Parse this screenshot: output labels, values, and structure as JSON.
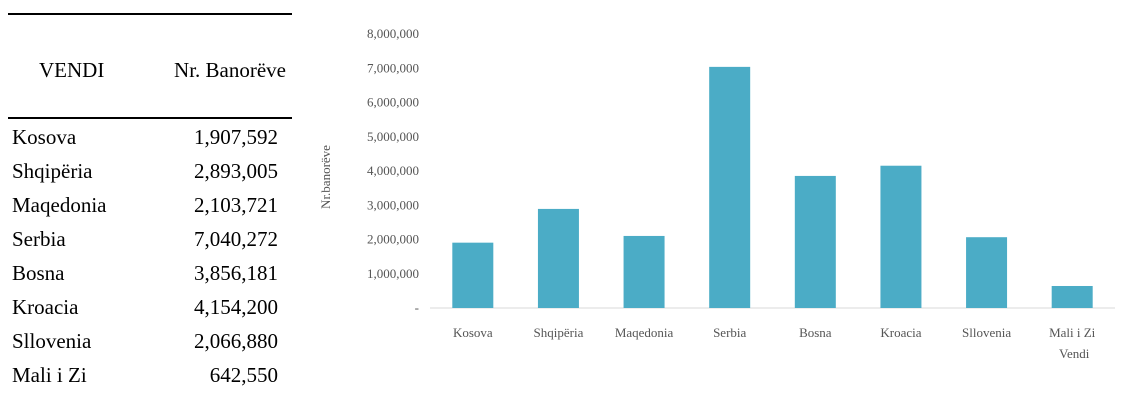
{
  "table": {
    "header_country": "VENDI",
    "header_population": "Nr. Banorëve",
    "rows": [
      {
        "country": "Kosova",
        "population": "1,907,592"
      },
      {
        "country": "Shqipëria",
        "population": "2,893,005"
      },
      {
        "country": "Maqedonia",
        "population": "2,103,721"
      },
      {
        "country": "Serbia",
        "population": "7,040,272"
      },
      {
        "country": "Bosna",
        "population": "3,856,181"
      },
      {
        "country": "Kroacia",
        "population": "4,154,200"
      },
      {
        "country": "Sllovenia",
        "population": "2,066,880"
      },
      {
        "country": "Mali i Zi",
        "population": "642,550"
      }
    ]
  },
  "chart_data": {
    "type": "bar",
    "categories": [
      "Kosova",
      "Shqipëria",
      "Maqedonia",
      "Serbia",
      "Bosna",
      "Kroacia",
      "Sllovenia",
      "Mali i Zi"
    ],
    "values": [
      1907592,
      2893005,
      2103721,
      7040272,
      3856181,
      4154200,
      2066880,
      642550
    ],
    "title": "",
    "xlabel": "Vendi",
    "ylabel": "Nr.banorëve",
    "ylim": [
      0,
      8000000
    ],
    "yticks": [
      0,
      1000000,
      2000000,
      3000000,
      4000000,
      5000000,
      6000000,
      7000000,
      8000000
    ],
    "ytick_labels": [
      "-",
      "1,000,000",
      "2,000,000",
      "3,000,000",
      "4,000,000",
      "5,000,000",
      "6,000,000",
      "7,000,000",
      "8,000,000"
    ],
    "bar_color": "#4bacc6",
    "axis_color": "#d9d9d9",
    "grid": false,
    "legend": "none"
  }
}
